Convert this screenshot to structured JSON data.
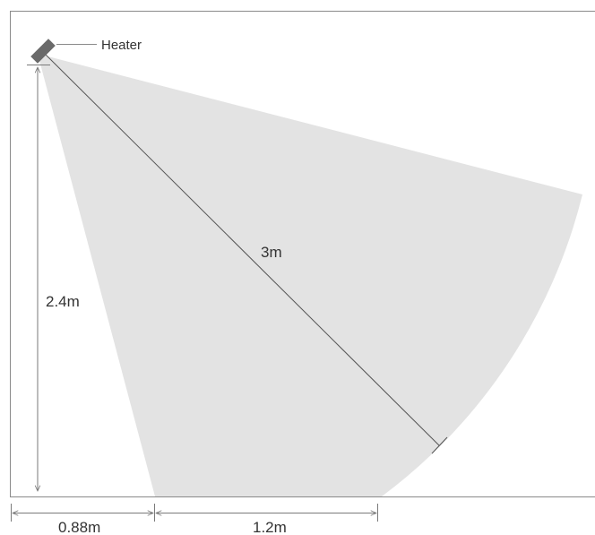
{
  "labels": {
    "heater": "Heater",
    "radius": "3m",
    "height": "2.4m",
    "near_offset": "0.88m",
    "coverage_width": "1.2m"
  },
  "colors": {
    "coverage_fill": "#e3e3e3",
    "heater_body": "#6a6a6a",
    "frame_line": "#8a8a8a",
    "dimension_line": "#7a7a7a",
    "text": "#333333"
  }
}
